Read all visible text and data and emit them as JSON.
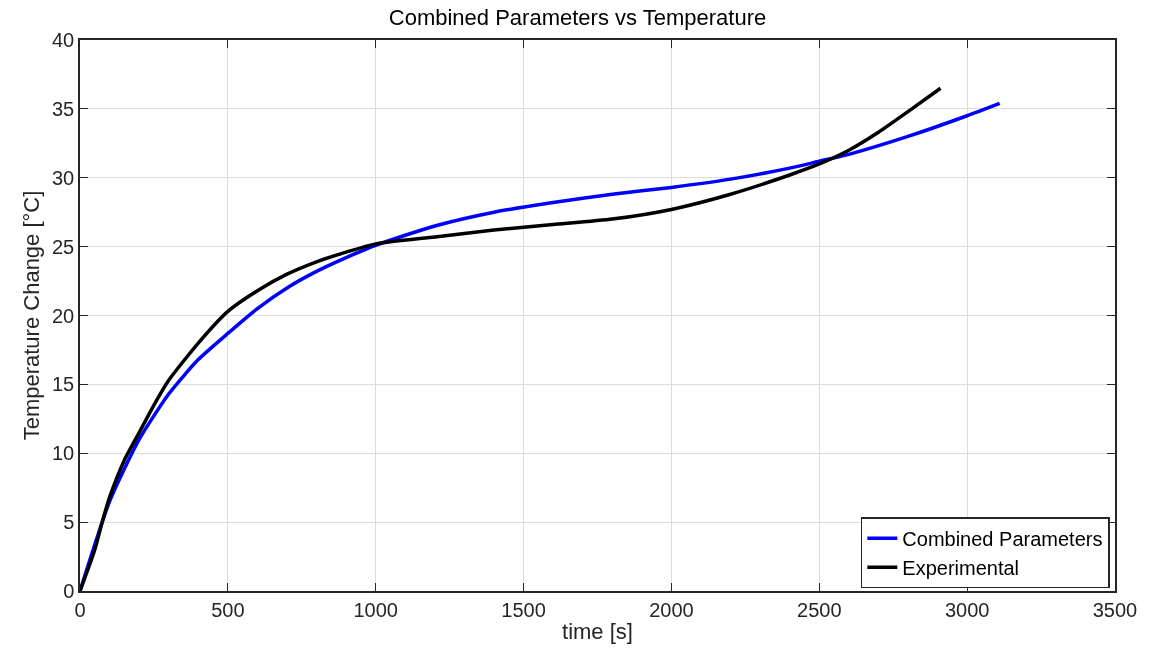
{
  "chart_data": {
    "type": "line",
    "title": "Combined Parameters vs Temperature",
    "xlabel": "time [s]",
    "ylabel": "Temperature Change [°C]",
    "xlim": [
      0,
      3500
    ],
    "xticks": [
      0,
      500,
      1000,
      1500,
      2000,
      2500,
      3000,
      3500
    ],
    "ylim": [
      0,
      40
    ],
    "yticks": [
      0,
      5,
      10,
      15,
      20,
      25,
      30,
      35,
      40
    ],
    "grid": true,
    "legend": "bottom right",
    "line_style": "solid",
    "series": [
      {
        "name": "Combined Parameters",
        "color": "#0000ff",
        "x": [
          0,
          100,
          200,
          300,
          400,
          500,
          600,
          700,
          800,
          900,
          1000,
          1200,
          1400,
          1600,
          1800,
          2000,
          2200,
          2400,
          2500,
          2600,
          2800,
          3000,
          3110
        ],
        "values": [
          0,
          6.5,
          11,
          14.3,
          16.8,
          18.7,
          20.5,
          22,
          23.2,
          24.2,
          25.1,
          26.5,
          27.5,
          28.2,
          28.8,
          29.3,
          29.9,
          30.7,
          31.2,
          31.7,
          33,
          34.5,
          35.4
        ]
      },
      {
        "name": "Experimental",
        "color": "#000000",
        "x": [
          0,
          50,
          75,
          100,
          150,
          200,
          250,
          300,
          400,
          500,
          600,
          700,
          800,
          900,
          1000,
          1200,
          1400,
          1600,
          1800,
          2000,
          2200,
          2400,
          2500,
          2600,
          2700,
          2800,
          2910
        ],
        "values": [
          0,
          3,
          5,
          6.8,
          9.5,
          11.5,
          13.5,
          15.3,
          18,
          20.3,
          21.8,
          23,
          23.9,
          24.6,
          25.2,
          25.7,
          26.2,
          26.6,
          27,
          27.7,
          28.8,
          30.2,
          31,
          32,
          33.3,
          34.8,
          36.5
        ]
      }
    ]
  }
}
